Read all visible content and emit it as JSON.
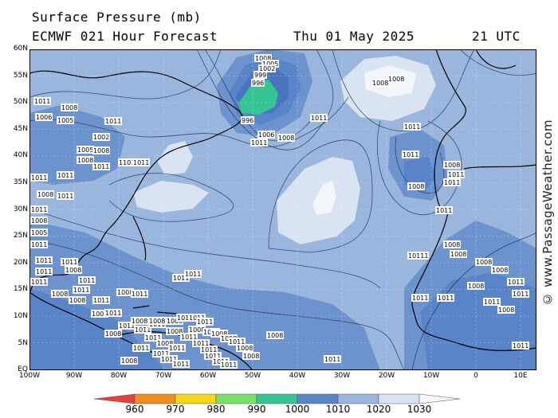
{
  "header": {
    "title": "Surface Pressure (mb)",
    "model": "ECMWF 021 Hour Forecast",
    "date": "Thu 01 May 2025",
    "time": "21 UTC"
  },
  "axes": {
    "lat_labels": [
      "60N",
      "55N",
      "50N",
      "45N",
      "40N",
      "35N",
      "30N",
      "25N",
      "20N",
      "15N",
      "10N",
      "5N",
      "EQ"
    ],
    "lon_labels": [
      "100W",
      "90W",
      "80W",
      "70W",
      "60W",
      "50W",
      "40W",
      "30W",
      "20W",
      "10W",
      "0",
      "10E"
    ]
  },
  "credit": "© www.PassageWeather.com",
  "legend": {
    "labels": [
      "960",
      "970",
      "980",
      "990",
      "1000",
      "1010",
      "1020",
      "1030"
    ],
    "colors": [
      "#e8413c",
      "#f28c1c",
      "#f6d716",
      "#79e06a",
      "#35c592",
      "#5a84c8",
      "#9ab6dd",
      "#d9e3f2",
      "#f3f6fa"
    ]
  },
  "pressure_labels": [
    "1008",
    "1005",
    "1002",
    "999",
    "996",
    "996",
    "1011",
    "1006",
    "1011",
    "1008",
    "1011",
    "1008",
    "1006",
    "1005",
    "1011",
    "1002",
    "1005",
    "1008",
    "1008",
    "1011",
    "11011",
    "1011",
    "1011",
    "1011",
    "1008",
    "1011",
    "1011",
    "1008",
    "1005",
    "1011",
    "1011",
    "1011",
    "1011",
    "1011",
    "1008",
    "1011",
    "1011",
    "1008",
    "1008",
    "1011",
    "1008",
    "1011",
    "1011",
    "1011",
    "1008",
    "1011",
    "1011",
    "1011",
    "1011",
    "1008",
    "1008",
    "1011",
    "1011",
    "1011",
    "1011",
    "1011",
    "1011",
    "1011",
    "1008",
    "1011",
    "1011",
    "1011",
    "1011",
    "1011",
    "1008",
    "1008",
    "1008",
    "1008",
    "1008",
    "1011",
    "1011",
    "1011",
    "1008",
    "1008",
    "1008",
    "1011",
    "1008",
    "1008",
    "1008",
    "1011",
    "1008",
    "1008",
    "1011",
    "1011",
    "1008",
    "1008",
    "1011",
    "1011",
    "1011",
    "10111",
    "1008",
    "1008",
    "1008",
    "1008",
    "1011",
    "1011",
    "1011",
    "1011",
    "1008",
    "1011",
    "1008",
    "1011"
  ]
}
